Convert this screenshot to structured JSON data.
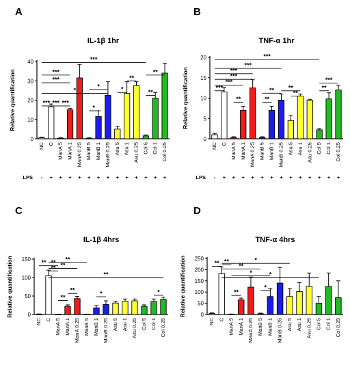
{
  "colors": {
    "white": "#ffffff",
    "red": "#ee1c1c",
    "blue": "#1c1cee",
    "yellow": "#ffff33",
    "green": "#22bb22"
  },
  "chart_data": [
    {
      "panel": "A",
      "type": "bar",
      "title": "IL-1β  1hr",
      "ylabel": "Relative quantification",
      "ylim": [
        0,
        40
      ],
      "yticks": [
        0,
        10,
        20,
        30,
        40
      ],
      "categories": [
        "NC",
        "C",
        "ManA 5",
        "ManA 1",
        "ManA 0.25",
        "ManB 5",
        "ManB 1",
        "ManB 0.25",
        "Asu 5",
        "Asu 1",
        "Asu 0.25",
        "Col 5",
        "Col 1",
        "Col 0.25"
      ],
      "values": [
        0.5,
        16.5,
        0.3,
        15,
        31.5,
        0.3,
        11.5,
        22.5,
        5,
        23.5,
        27.5,
        1.5,
        21,
        34
      ],
      "errors": [
        0.3,
        1.5,
        0.2,
        0.8,
        7,
        0.2,
        3,
        7,
        1.5,
        6,
        2,
        0.5,
        3,
        5
      ],
      "colors": [
        "white",
        "white",
        "red",
        "red",
        "red",
        "blue",
        "blue",
        "blue",
        "yellow",
        "yellow",
        "yellow",
        "green",
        "green",
        "green"
      ],
      "lps": [
        "-",
        "+",
        "+",
        "+",
        "+",
        "+",
        "+",
        "+",
        "+",
        "+",
        "+",
        "+",
        "+",
        "+"
      ],
      "lps_label": "LPS",
      "significance": [
        {
          "from": 1,
          "to": 12,
          "y": 39.5,
          "label": "***"
        },
        {
          "from": 1,
          "to": 4,
          "y": 33,
          "label": "***"
        },
        {
          "from": 1,
          "to": 4,
          "y": 29,
          "label": "***"
        },
        {
          "from": 1,
          "to": 8,
          "y": 23.5,
          "label": "*"
        },
        {
          "from": 6,
          "to": 8,
          "y": 25.5,
          "label": "*"
        },
        {
          "from": 9,
          "to": 10,
          "y": 24,
          "label": "*"
        },
        {
          "from": 10,
          "to": 11,
          "y": 30,
          "label": "**"
        },
        {
          "from": 12,
          "to": 14,
          "y": 33,
          "label": "**"
        },
        {
          "from": 12,
          "to": 13,
          "y": 22.5,
          "label": "**"
        },
        {
          "from": 6,
          "to": 7,
          "y": 14.5,
          "label": "*"
        },
        {
          "from": 1,
          "to": 2,
          "y": 17,
          "label": "***"
        },
        {
          "from": 2,
          "to": 3,
          "y": 17,
          "label": "***"
        },
        {
          "from": 3,
          "to": 4,
          "y": 17,
          "label": "***"
        }
      ]
    },
    {
      "panel": "B",
      "type": "bar",
      "title": "TNF-α  1hr",
      "ylabel": "Relative quantification",
      "ylim": [
        0,
        20
      ],
      "yticks": [
        0,
        5,
        10,
        15,
        20
      ],
      "categories": [
        "NC",
        "C",
        "ManA 5",
        "ManA 1",
        "ManA 0.25",
        "ManB 5",
        "ManB 1",
        "ManB 0.25",
        "Asu 5",
        "Asu 1",
        "Asu 0.25",
        "Col 5",
        "Col 1",
        "Col 0.25"
      ],
      "values": [
        1,
        11.5,
        0.3,
        7,
        12.5,
        0.3,
        7,
        9.5,
        4.5,
        10.5,
        9.5,
        2.2,
        9.8,
        12
      ],
      "errors": [
        0.3,
        1.2,
        0.2,
        1,
        2,
        0.2,
        1,
        1.5,
        1.2,
        0.5,
        0.2,
        0.3,
        1.5,
        1.2
      ],
      "colors": [
        "white",
        "white",
        "red",
        "red",
        "red",
        "blue",
        "blue",
        "blue",
        "yellow",
        "yellow",
        "yellow",
        "green",
        "green",
        "green"
      ],
      "lps": [
        "-",
        "+",
        "+",
        "+",
        "+",
        "+",
        "+",
        "+",
        "+",
        "+",
        "+",
        "+",
        "+",
        "+"
      ],
      "lps_label": "LPS",
      "significance": [
        {
          "from": 1,
          "to": 12,
          "y": 19.5,
          "label": "***"
        },
        {
          "from": 1,
          "to": 8,
          "y": 17.3,
          "label": "***"
        },
        {
          "from": 1,
          "to": 5,
          "y": 16,
          "label": "***"
        },
        {
          "from": 1,
          "to": 5,
          "y": 14.6,
          "label": "***"
        },
        {
          "from": 1,
          "to": 4,
          "y": 13.2,
          "label": "***"
        },
        {
          "from": 1,
          "to": 2,
          "y": 11.8,
          "label": "***"
        },
        {
          "from": 3,
          "to": 4,
          "y": 9,
          "label": "**"
        },
        {
          "from": 6,
          "to": 7,
          "y": 9,
          "label": "**"
        },
        {
          "from": 6,
          "to": 8,
          "y": 11.2,
          "label": "**"
        },
        {
          "from": 8,
          "to": 10,
          "y": 11.8,
          "label": "**"
        },
        {
          "from": 9,
          "to": 10,
          "y": 10.5,
          "label": "**"
        },
        {
          "from": 12,
          "to": 13,
          "y": 11.8,
          "label": "**"
        },
        {
          "from": 12,
          "to": 14,
          "y": 13.7,
          "label": "***"
        }
      ]
    },
    {
      "panel": "C",
      "type": "bar",
      "title": "IL-1β  4hrs",
      "ylabel": "Relative quantification",
      "ylim": [
        0,
        150
      ],
      "yticks": [
        0,
        50,
        100,
        150
      ],
      "categories": [
        "NC",
        "C",
        "ManA 5",
        "ManA 1",
        "ManA 0.25",
        "ManB 5",
        "ManB 1",
        "ManB 0.25",
        "Asu 5",
        "Asu 1",
        "Asu 0.25",
        "Col 5",
        "Col 1",
        "Col 0.25"
      ],
      "values": [
        1,
        105,
        0.5,
        22,
        43,
        0.5,
        18,
        27,
        31,
        36,
        37,
        22,
        35,
        41
      ],
      "errors": [
        0.5,
        15,
        0.3,
        4,
        6,
        0.3,
        6,
        10,
        5,
        6,
        5,
        4,
        7,
        6
      ],
      "colors": [
        "white",
        "white",
        "red",
        "red",
        "red",
        "blue",
        "blue",
        "blue",
        "yellow",
        "yellow",
        "yellow",
        "green",
        "green",
        "green"
      ],
      "significance": [
        {
          "from": 1,
          "to": 2,
          "y": 132,
          "label": "**"
        },
        {
          "from": 2,
          "to": 3,
          "y": 132,
          "label": "**"
        },
        {
          "from": 2,
          "to": 6,
          "y": 141,
          "label": "**"
        },
        {
          "from": 2,
          "to": 5,
          "y": 125,
          "label": "**"
        },
        {
          "from": 2,
          "to": 3,
          "y": 118,
          "label": "**"
        },
        {
          "from": 2,
          "to": 14,
          "y": 100,
          "label": "**"
        },
        {
          "from": 4,
          "to": 5,
          "y": 57,
          "label": "**"
        },
        {
          "from": 3,
          "to": 4,
          "y": 38,
          "label": "**"
        },
        {
          "from": 7,
          "to": 8,
          "y": 48,
          "label": "*"
        },
        {
          "from": 13,
          "to": 14,
          "y": 52,
          "label": "*"
        }
      ]
    },
    {
      "panel": "D",
      "type": "bar",
      "title": "TNF-α  4hrs",
      "ylabel": "Relative quantification",
      "ylim": [
        0,
        250
      ],
      "yticks": [
        0,
        50,
        100,
        150,
        200,
        250
      ],
      "categories": [
        "NC",
        "C",
        "ManA 5",
        "ManA 1",
        "ManA 0.25",
        "ManB 5",
        "ManB 1",
        "ManB 0.25",
        "Asu 5",
        "Asu 1",
        "Asu 0.25",
        "Col 5",
        "Col 1",
        "Col 0.25"
      ],
      "values": [
        4,
        182,
        1,
        65,
        122,
        3,
        80,
        140,
        80,
        102,
        125,
        50,
        125,
        75
      ],
      "errors": [
        3,
        30,
        1,
        8,
        45,
        3,
        35,
        70,
        35,
        40,
        60,
        30,
        60,
        75
      ],
      "colors": [
        "white",
        "white",
        "red",
        "red",
        "red",
        "blue",
        "blue",
        "blue",
        "yellow",
        "yellow",
        "yellow",
        "green",
        "green",
        "green"
      ],
      "significance": [
        {
          "from": 1,
          "to": 2,
          "y": 215,
          "label": "**"
        },
        {
          "from": 2,
          "to": 9,
          "y": 228,
          "label": "*"
        },
        {
          "from": 2,
          "to": 3,
          "y": 222,
          "label": "**"
        },
        {
          "from": 2,
          "to": 6,
          "y": 203,
          "label": "**"
        },
        {
          "from": 2,
          "to": 12,
          "y": 165,
          "label": "*"
        },
        {
          "from": 3,
          "to": 7,
          "y": 172,
          "label": "*"
        },
        {
          "from": 3,
          "to": 4,
          "y": 85,
          "label": "**"
        },
        {
          "from": 6,
          "to": 7,
          "y": 107,
          "label": "*"
        }
      ]
    }
  ]
}
